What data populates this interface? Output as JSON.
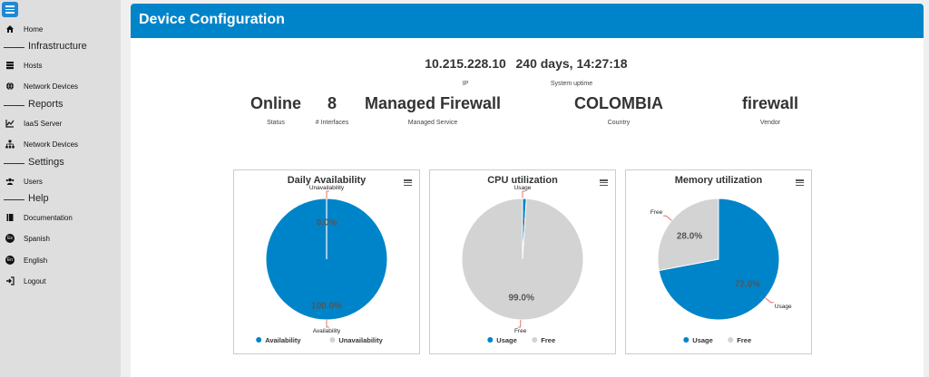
{
  "sidebar": {
    "items": [
      {
        "label": "Home",
        "icon": "home-icon"
      },
      {
        "section": "Infrastructure"
      },
      {
        "label": "Hosts",
        "icon": "server-icon"
      },
      {
        "label": "Network Devices",
        "icon": "globe-icon"
      },
      {
        "section": "Reports"
      },
      {
        "label": "IaaS Server",
        "icon": "chart-line-icon"
      },
      {
        "label": "Network Devices",
        "icon": "sitemap-icon"
      },
      {
        "section": "Settings"
      },
      {
        "label": "Users",
        "icon": "users-icon"
      },
      {
        "section": "Help"
      },
      {
        "label": "Documentation",
        "icon": "book-icon"
      },
      {
        "label": "Spanish",
        "icon": "es-flag-icon",
        "badge": "Es"
      },
      {
        "label": "English",
        "icon": "en-flag-icon",
        "badge": "En"
      },
      {
        "label": "Logout",
        "icon": "logout-icon"
      }
    ]
  },
  "header": {
    "title": "Device Configuration"
  },
  "device": {
    "ip": {
      "value": "10.215.228.10",
      "label": "IP"
    },
    "uptime": {
      "value": "240 days, 14:27:18",
      "label": "System uptime"
    },
    "status": {
      "value": "Online",
      "label": "Status"
    },
    "interfaces": {
      "value": "8",
      "label": "# Interfaces"
    },
    "service": {
      "value": "Managed Firewall",
      "label": "Managed Service"
    },
    "country": {
      "value": "COLOMBIA",
      "label": "Country"
    },
    "vendor": {
      "value": "firewall",
      "label": "Vendor"
    }
  },
  "colors": {
    "accent": "#0084c9",
    "slice_blue": "#0084c9",
    "slice_grey": "#d3d3d3"
  },
  "chart_data": [
    {
      "type": "pie",
      "title": "Daily Availability",
      "series": [
        {
          "name": "Availability",
          "value": 100.0,
          "color": "#0084c9"
        },
        {
          "name": "Unavailability",
          "value": 0.0,
          "color": "#d3d3d3"
        }
      ],
      "data_labels": [
        "100.0%",
        "0.0%"
      ],
      "legend": "bottom"
    },
    {
      "type": "pie",
      "title": "CPU utilization",
      "series": [
        {
          "name": "Usage",
          "value": 1.0,
          "color": "#0084c9"
        },
        {
          "name": "Free",
          "value": 99.0,
          "color": "#d3d3d3"
        }
      ],
      "data_labels": [
        "1.0%",
        "99.0%"
      ],
      "legend": "bottom"
    },
    {
      "type": "pie",
      "title": "Memory utilization",
      "series": [
        {
          "name": "Usage",
          "value": 72.0,
          "color": "#0084c9"
        },
        {
          "name": "Free",
          "value": 28.0,
          "color": "#d3d3d3"
        }
      ],
      "data_labels": [
        "72.0%",
        "28.0%"
      ],
      "legend": "bottom"
    }
  ]
}
